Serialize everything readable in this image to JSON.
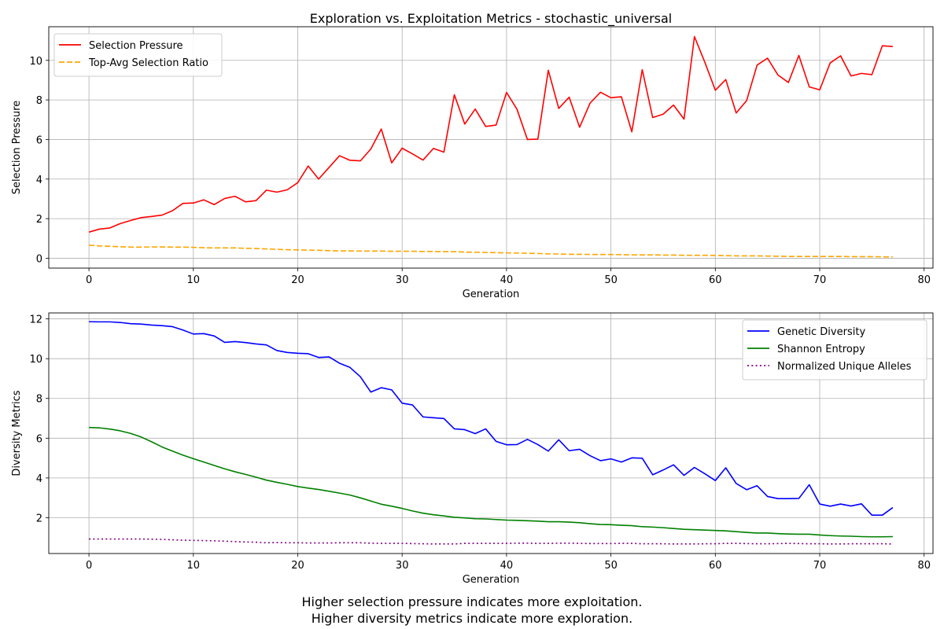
{
  "caption": {
    "line1": "Higher selection pressure indicates more exploitation.",
    "line2": "Higher diversity metrics indicate more exploration."
  },
  "chart_data": [
    {
      "type": "line",
      "title": "Exploration vs. Exploitation Metrics - stochastic_universal",
      "xlabel": "Generation",
      "ylabel": "Selection Pressure",
      "xlim": [
        -3.85,
        80.85
      ],
      "ylim": [
        -0.5,
        11.7
      ],
      "xticks": [
        0,
        10,
        20,
        30,
        40,
        50,
        60,
        70,
        80
      ],
      "yticks": [
        0,
        2,
        4,
        6,
        8,
        10
      ],
      "grid": true,
      "legend": "top-left",
      "x": [
        0,
        1,
        2,
        3,
        4,
        5,
        6,
        7,
        8,
        9,
        10,
        11,
        12,
        13,
        14,
        15,
        16,
        17,
        18,
        19,
        20,
        21,
        22,
        23,
        24,
        25,
        26,
        27,
        28,
        29,
        30,
        31,
        32,
        33,
        34,
        35,
        36,
        37,
        38,
        39,
        40,
        41,
        42,
        43,
        44,
        45,
        46,
        47,
        48,
        49,
        50,
        51,
        52,
        53,
        54,
        55,
        56,
        57,
        58,
        59,
        60,
        61,
        62,
        63,
        64,
        65,
        66,
        67,
        68,
        69,
        70,
        71,
        72,
        73,
        74,
        75,
        76,
        77
      ],
      "series": [
        {
          "name": "Selection Pressure",
          "color": "#ff0000",
          "dash": "solid",
          "values": [
            1.32,
            1.47,
            1.53,
            1.75,
            1.91,
            2.05,
            2.11,
            2.18,
            2.4,
            2.77,
            2.79,
            2.95,
            2.71,
            3.02,
            3.13,
            2.85,
            2.91,
            3.44,
            3.34,
            3.46,
            3.82,
            4.66,
            4.0,
            4.59,
            5.18,
            4.95,
            4.92,
            5.52,
            6.53,
            4.82,
            5.56,
            5.27,
            4.96,
            5.55,
            5.36,
            8.26,
            6.78,
            7.54,
            6.66,
            6.73,
            8.38,
            7.53,
            6.0,
            6.02,
            9.5,
            7.57,
            8.14,
            6.62,
            7.84,
            8.39,
            8.11,
            8.16,
            6.39,
            9.53,
            7.11,
            7.28,
            7.74,
            7.03,
            11.2,
            9.9,
            8.49,
            9.03,
            7.34,
            7.97,
            9.76,
            10.11,
            9.26,
            8.88,
            10.25,
            8.66,
            8.51,
            9.87,
            10.23,
            9.21,
            9.34,
            9.28,
            10.74,
            10.7
          ]
        },
        {
          "name": "Top-Avg Selection Ratio",
          "color": "#ffa500",
          "dash": "dashed",
          "values": [
            0.66,
            0.62,
            0.6,
            0.58,
            0.56,
            0.56,
            0.57,
            0.57,
            0.56,
            0.56,
            0.55,
            0.53,
            0.52,
            0.52,
            0.52,
            0.5,
            0.49,
            0.47,
            0.45,
            0.43,
            0.42,
            0.41,
            0.4,
            0.38,
            0.37,
            0.37,
            0.36,
            0.36,
            0.36,
            0.35,
            0.35,
            0.35,
            0.34,
            0.34,
            0.33,
            0.33,
            0.31,
            0.3,
            0.29,
            0.28,
            0.27,
            0.26,
            0.25,
            0.24,
            0.22,
            0.21,
            0.2,
            0.2,
            0.19,
            0.19,
            0.19,
            0.18,
            0.17,
            0.17,
            0.17,
            0.16,
            0.16,
            0.15,
            0.15,
            0.15,
            0.14,
            0.13,
            0.12,
            0.12,
            0.12,
            0.11,
            0.1,
            0.09,
            0.09,
            0.09,
            0.09,
            0.09,
            0.09,
            0.08,
            0.08,
            0.08,
            0.07,
            0.06
          ]
        }
      ]
    },
    {
      "type": "line",
      "title": "",
      "xlabel": "Generation",
      "ylabel": "Diversity Metrics",
      "xlim": [
        -3.85,
        80.85
      ],
      "ylim": [
        0.2,
        12.3
      ],
      "xticks": [
        0,
        10,
        20,
        30,
        40,
        50,
        60,
        70,
        80
      ],
      "yticks": [
        2,
        4,
        6,
        8,
        10,
        12
      ],
      "grid": true,
      "legend": "top-right",
      "x": [
        0,
        1,
        2,
        3,
        4,
        5,
        6,
        7,
        8,
        9,
        10,
        11,
        12,
        13,
        14,
        15,
        16,
        17,
        18,
        19,
        20,
        21,
        22,
        23,
        24,
        25,
        26,
        27,
        28,
        29,
        30,
        31,
        32,
        33,
        34,
        35,
        36,
        37,
        38,
        39,
        40,
        41,
        42,
        43,
        44,
        45,
        46,
        47,
        48,
        49,
        50,
        51,
        52,
        53,
        54,
        55,
        56,
        57,
        58,
        59,
        60,
        61,
        62,
        63,
        64,
        65,
        66,
        67,
        68,
        69,
        70,
        71,
        72,
        73,
        74,
        75,
        76,
        77
      ],
      "series": [
        {
          "name": "Genetic Diversity",
          "color": "#0000ff",
          "dash": "solid",
          "values": [
            11.86,
            11.85,
            11.85,
            11.82,
            11.76,
            11.74,
            11.69,
            11.66,
            11.61,
            11.44,
            11.24,
            11.26,
            11.14,
            10.82,
            10.86,
            10.81,
            10.74,
            10.69,
            10.41,
            10.31,
            10.27,
            10.25,
            10.06,
            10.09,
            9.77,
            9.56,
            9.09,
            8.32,
            8.54,
            8.43,
            7.76,
            7.67,
            7.07,
            7.03,
            6.99,
            6.47,
            6.43,
            6.23,
            6.47,
            5.84,
            5.67,
            5.68,
            5.94,
            5.68,
            5.35,
            5.92,
            5.37,
            5.44,
            5.12,
            4.87,
            4.96,
            4.8,
            5.01,
            4.99,
            4.16,
            4.4,
            4.66,
            4.13,
            4.53,
            4.21,
            3.87,
            4.51,
            3.72,
            3.41,
            3.61,
            3.07,
            2.96,
            2.96,
            2.97,
            3.66,
            2.69,
            2.58,
            2.69,
            2.59,
            2.7,
            2.13,
            2.13,
            2.51
          ]
        },
        {
          "name": "Shannon Entropy",
          "color": "#008000",
          "dash": "solid",
          "values": [
            6.54,
            6.52,
            6.46,
            6.37,
            6.24,
            6.06,
            5.82,
            5.56,
            5.35,
            5.15,
            4.97,
            4.8,
            4.63,
            4.46,
            4.31,
            4.18,
            4.04,
            3.89,
            3.78,
            3.68,
            3.57,
            3.49,
            3.42,
            3.33,
            3.24,
            3.14,
            3.0,
            2.84,
            2.68,
            2.58,
            2.47,
            2.34,
            2.23,
            2.15,
            2.09,
            2.02,
            1.99,
            1.95,
            1.94,
            1.91,
            1.88,
            1.87,
            1.85,
            1.83,
            1.8,
            1.8,
            1.78,
            1.75,
            1.7,
            1.66,
            1.65,
            1.62,
            1.6,
            1.55,
            1.53,
            1.5,
            1.46,
            1.42,
            1.4,
            1.38,
            1.36,
            1.34,
            1.3,
            1.26,
            1.23,
            1.23,
            1.2,
            1.18,
            1.17,
            1.17,
            1.13,
            1.1,
            1.08,
            1.07,
            1.05,
            1.04,
            1.04,
            1.05
          ]
        },
        {
          "name": "Normalized Unique Alleles",
          "color": "#800080",
          "dash": "dotted",
          "values": [
            0.93,
            0.93,
            0.93,
            0.93,
            0.93,
            0.93,
            0.92,
            0.91,
            0.89,
            0.87,
            0.86,
            0.85,
            0.84,
            0.82,
            0.8,
            0.78,
            0.77,
            0.74,
            0.75,
            0.74,
            0.74,
            0.73,
            0.73,
            0.73,
            0.74,
            0.74,
            0.74,
            0.72,
            0.71,
            0.71,
            0.71,
            0.7,
            0.69,
            0.68,
            0.68,
            0.68,
            0.71,
            0.71,
            0.71,
            0.71,
            0.71,
            0.72,
            0.72,
            0.71,
            0.71,
            0.72,
            0.72,
            0.71,
            0.7,
            0.7,
            0.7,
            0.71,
            0.71,
            0.69,
            0.69,
            0.69,
            0.68,
            0.68,
            0.68,
            0.69,
            0.69,
            0.71,
            0.71,
            0.7,
            0.69,
            0.69,
            0.7,
            0.71,
            0.7,
            0.69,
            0.69,
            0.68,
            0.68,
            0.69,
            0.69,
            0.69,
            0.69,
            0.68
          ]
        }
      ]
    }
  ]
}
